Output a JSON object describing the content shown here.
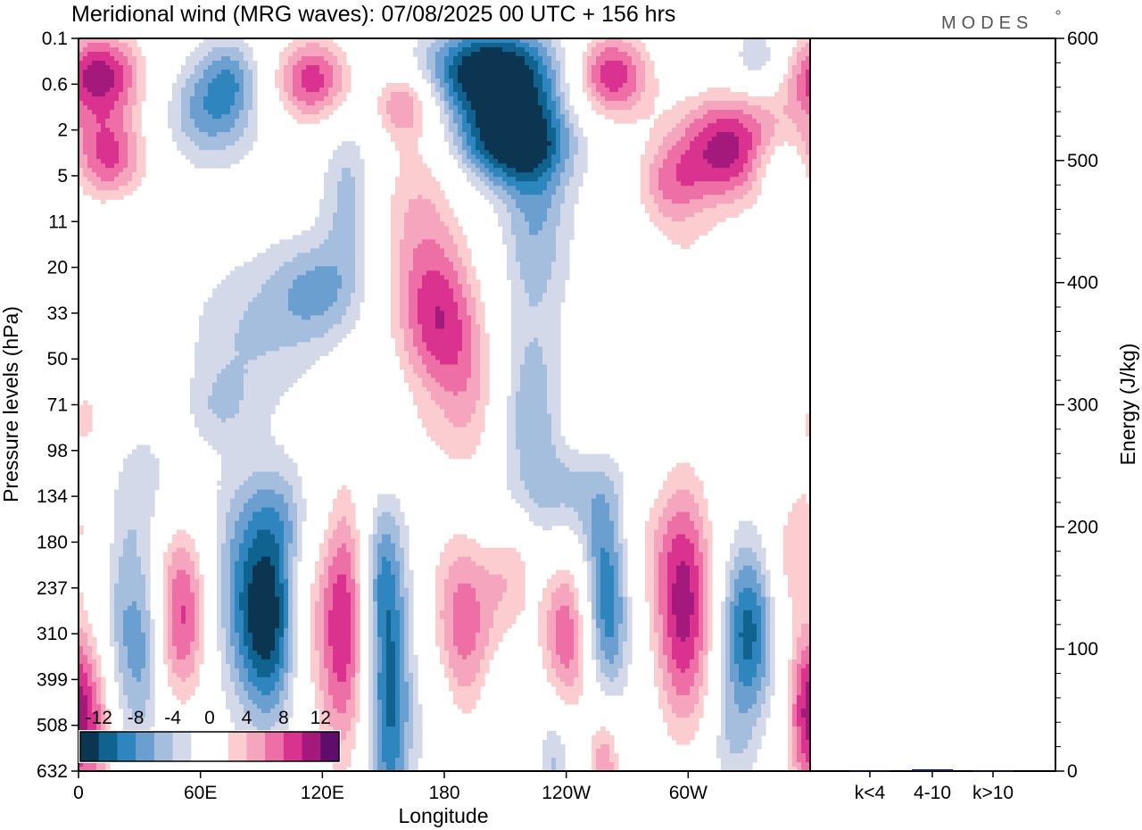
{
  "chart_data": {
    "type": "heatmap",
    "title": "Meridional wind (MRG waves):  07/08/2025  00 UTC  + 156 hrs",
    "xlabel": "Longitude",
    "ylabel": "Pressure levels (hPa)",
    "x_ticks": [
      "0",
      "60E",
      "120E",
      "180",
      "120W",
      "60W"
    ],
    "x_tick_values_deg": [
      0,
      60,
      120,
      180,
      240,
      300
    ],
    "xlim_deg": [
      0,
      360
    ],
    "y_ticks": [
      "0.1",
      "0.6",
      "2",
      "5",
      "11",
      "20",
      "33",
      "50",
      "71",
      "98",
      "134",
      "180",
      "237",
      "310",
      "399",
      "508",
      "632"
    ],
    "colorbar": {
      "labels": [
        "-12",
        "-8",
        "-4",
        "0",
        "4",
        "8",
        "12"
      ],
      "levels": [
        -14,
        -12,
        -10,
        -8,
        -6,
        -4,
        -2,
        2,
        4,
        6,
        8,
        10,
        12,
        14
      ],
      "colors": [
        "#0b3550",
        "#10628f",
        "#2f86bf",
        "#6a9fd0",
        "#a6bedd",
        "#d4d9ea",
        "#ffffff",
        "#ffffff",
        "#fbcdd0",
        "#f6a5bf",
        "#ee6fa6",
        "#d9328f",
        "#a4197c",
        "#5e0d6a"
      ]
    },
    "blobs": [
      {
        "lon": 10,
        "lev": 0.8,
        "w": 16,
        "h": 0.7,
        "v": 13
      },
      {
        "lon": 15,
        "lev": 2.6,
        "w": 14,
        "h": 0.7,
        "v": 10
      },
      {
        "lon": 65,
        "lev": 1.6,
        "w": 16,
        "h": 0.8,
        "v": -7
      },
      {
        "lon": 75,
        "lev": 0.8,
        "w": 10,
        "h": 0.6,
        "v": -5
      },
      {
        "lon": 115,
        "lev": 0.9,
        "w": 14,
        "h": 0.7,
        "v": 11
      },
      {
        "lon": 160,
        "lev": 1.4,
        "w": 10,
        "h": 0.5,
        "v": 7
      },
      {
        "lon": 133,
        "lev": 3.4,
        "w": 9,
        "h": 1.2,
        "v": -5
      },
      {
        "lon": 118,
        "lev": 5.5,
        "w": 16,
        "h": 0.8,
        "v": -6
      },
      {
        "lon": 85,
        "lev": 6.5,
        "w": 22,
        "h": 1.2,
        "v": -4
      },
      {
        "lon": 168,
        "lev": 4.0,
        "w": 16,
        "h": 2.2,
        "v": 6
      },
      {
        "lon": 178,
        "lev": 6.2,
        "w": 14,
        "h": 1.2,
        "v": 8
      },
      {
        "lon": 192,
        "lev": 8.0,
        "w": 12,
        "h": 1.4,
        "v": 5
      },
      {
        "lon": 202,
        "lev": 0.7,
        "w": 24,
        "h": 0.7,
        "v": -15
      },
      {
        "lon": 212,
        "lev": 2.2,
        "w": 20,
        "h": 0.7,
        "v": -14
      },
      {
        "lon": 225,
        "lev": 4.0,
        "w": 12,
        "h": 1.6,
        "v": -6
      },
      {
        "lon": 222,
        "lev": 8.0,
        "w": 10,
        "h": 1.2,
        "v": -5
      },
      {
        "lon": 262,
        "lev": 0.8,
        "w": 14,
        "h": 0.7,
        "v": 12
      },
      {
        "lon": 320,
        "lev": 2.4,
        "w": 20,
        "h": 0.9,
        "v": 13
      },
      {
        "lon": 290,
        "lev": 3.2,
        "w": 12,
        "h": 0.7,
        "v": 6
      },
      {
        "lon": 345,
        "lev": 2.8,
        "w": 10,
        "h": 0.5,
        "v": -5
      },
      {
        "lon": 335,
        "lev": 0.5,
        "w": 10,
        "h": 0.5,
        "v": -5
      },
      {
        "lon": 300,
        "lev": 4.8,
        "w": 16,
        "h": 0.8,
        "v": 3
      },
      {
        "lon": 5,
        "lev": 8.0,
        "w": 10,
        "h": 0.6,
        "v": 3
      },
      {
        "lon": 160,
        "lev": 9.0,
        "w": 10,
        "h": 0.6,
        "v": 3
      },
      {
        "lon": 200,
        "lev": 10.2,
        "w": 10,
        "h": 0.6,
        "v": -3
      },
      {
        "lon": 350,
        "lev": 5.0,
        "w": 12,
        "h": 0.6,
        "v": 3
      },
      {
        "lon": 30,
        "lev": 9.8,
        "w": 18,
        "h": 1.0,
        "v": -3
      },
      {
        "lon": 102,
        "lev": 10.4,
        "w": 16,
        "h": 0.8,
        "v": -3
      },
      {
        "lon": 250,
        "lev": 8.6,
        "w": 14,
        "h": 0.6,
        "v": 3
      },
      {
        "lon": 322,
        "lev": 6.8,
        "w": 14,
        "h": 0.6,
        "v": 3
      },
      {
        "lon": 240,
        "lev": 10.0,
        "w": 18,
        "h": 1.2,
        "v": -6
      },
      {
        "lon": 50,
        "lev": 11.2,
        "w": 12,
        "h": 1.0,
        "v": 3
      },
      {
        "lon": 5,
        "lev": 10.4,
        "w": 10,
        "h": 0.8,
        "v": 3
      },
      {
        "lon": 215,
        "lev": 11.4,
        "w": 8,
        "h": 0.8,
        "v": 3
      },
      {
        "lon": 360,
        "lev": 9.0,
        "w": 14,
        "h": 0.8,
        "v": 3
      },
      {
        "lon": 5,
        "lev": 15.1,
        "w": 12,
        "h": 1.5,
        "v": 10
      },
      {
        "lon": 22,
        "lev": 13.5,
        "w": 7,
        "h": 2.0,
        "v": -7
      },
      {
        "lon": 33,
        "lev": 13.2,
        "w": 5,
        "h": 1.6,
        "v": -5
      },
      {
        "lon": 52,
        "lev": 12.8,
        "w": 9,
        "h": 1.3,
        "v": 10
      },
      {
        "lon": 90,
        "lev": 12.0,
        "w": 18,
        "h": 1.6,
        "v": -9
      },
      {
        "lon": 93,
        "lev": 13.2,
        "w": 10,
        "h": 1.4,
        "v": -7
      },
      {
        "lon": 112,
        "lev": 12.4,
        "w": 8,
        "h": 1.6,
        "v": 6
      },
      {
        "lon": 130,
        "lev": 12.8,
        "w": 9,
        "h": 2.2,
        "v": 12
      },
      {
        "lon": 153,
        "lev": 14.2,
        "w": 8,
        "h": 2.4,
        "v": -11
      },
      {
        "lon": 148,
        "lev": 11.6,
        "w": 6,
        "h": 1.0,
        "v": -4
      },
      {
        "lon": 176,
        "lev": 14.8,
        "w": 6,
        "h": 1.0,
        "v": -3
      },
      {
        "lon": 189,
        "lev": 12.8,
        "w": 12,
        "h": 1.6,
        "v": 9
      },
      {
        "lon": 212,
        "lev": 12.2,
        "w": 10,
        "h": 1.4,
        "v": 3
      },
      {
        "lon": 240,
        "lev": 13.0,
        "w": 9,
        "h": 1.6,
        "v": 10
      },
      {
        "lon": 260,
        "lev": 12.3,
        "w": 8,
        "h": 1.6,
        "v": -10
      },
      {
        "lon": 235,
        "lev": 15.6,
        "w": 6,
        "h": 1.0,
        "v": -6
      },
      {
        "lon": 259,
        "lev": 15.8,
        "w": 6,
        "h": 0.9,
        "v": 8
      },
      {
        "lon": 275,
        "lev": 11.0,
        "w": 12,
        "h": 1.0,
        "v": 3
      },
      {
        "lon": 298,
        "lev": 12.4,
        "w": 11,
        "h": 2.0,
        "v": 13
      },
      {
        "lon": 329,
        "lev": 13.0,
        "w": 10,
        "h": 1.4,
        "v": -11
      },
      {
        "lon": 350,
        "lev": 11.4,
        "w": 8,
        "h": 1.0,
        "v": 5
      },
      {
        "lon": 358,
        "lev": 14.2,
        "w": 6,
        "h": 1.2,
        "v": 5
      },
      {
        "lon": 70,
        "lev": 8.0,
        "w": 10,
        "h": 0.6,
        "v": -3
      },
      {
        "lon": 210,
        "lev": 14.6,
        "w": 8,
        "h": 1.0,
        "v": -3
      },
      {
        "lon": 320,
        "lev": 15.5,
        "w": 8,
        "h": 0.8,
        "v": -3
      }
    ],
    "energy_axis": {
      "ylabel": "Energy (J/kg)",
      "ylim": [
        0,
        600
      ],
      "ticks": [
        "0",
        "100",
        "200",
        "300",
        "400",
        "500",
        "600"
      ],
      "tick_values": [
        0,
        100,
        200,
        300,
        400,
        500,
        600
      ],
      "categories": [
        "k<4",
        "4-10",
        "k>10"
      ],
      "values": [
        0.3,
        1.5,
        0.3
      ],
      "bar_color": "#1a1a4d"
    }
  },
  "logo": "MODES"
}
